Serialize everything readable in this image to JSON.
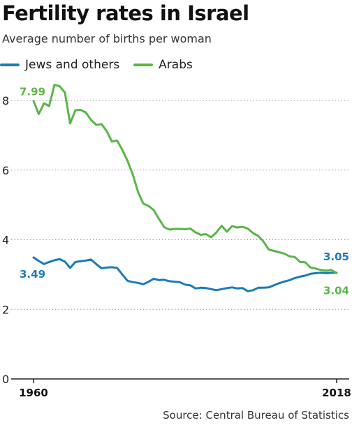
{
  "chart_data": {
    "type": "line",
    "title": "Fertility rates in Israel",
    "subtitle": "Average number of births per woman",
    "source": "Source: Central Bureau of Statistics",
    "ylim": [
      0,
      8.5
    ],
    "yticks": [
      0,
      2,
      4,
      6,
      8
    ],
    "xlim": [
      1960,
      2018
    ],
    "xtick_labels": [
      "1960",
      "2018"
    ],
    "grid": "horizontal dotted",
    "legend_position": "top-left",
    "x": [
      1960,
      1961,
      1962,
      1963,
      1964,
      1965,
      1966,
      1967,
      1968,
      1969,
      1970,
      1971,
      1972,
      1973,
      1974,
      1975,
      1976,
      1977,
      1978,
      1979,
      1980,
      1981,
      1982,
      1983,
      1984,
      1985,
      1986,
      1987,
      1988,
      1989,
      1990,
      1991,
      1992,
      1993,
      1994,
      1995,
      1996,
      1997,
      1998,
      1999,
      2000,
      2001,
      2002,
      2003,
      2004,
      2005,
      2006,
      2007,
      2008,
      2009,
      2010,
      2011,
      2012,
      2013,
      2014,
      2015,
      2016,
      2017,
      2018
    ],
    "series": [
      {
        "name": "Jews and others",
        "color": "#1a7bb8",
        "values": [
          3.49,
          3.39,
          3.3,
          3.36,
          3.41,
          3.44,
          3.37,
          3.19,
          3.36,
          3.38,
          3.4,
          3.43,
          3.3,
          3.18,
          3.2,
          3.21,
          3.19,
          3.0,
          2.82,
          2.78,
          2.76,
          2.72,
          2.79,
          2.88,
          2.84,
          2.85,
          2.81,
          2.79,
          2.78,
          2.71,
          2.69,
          2.6,
          2.62,
          2.61,
          2.58,
          2.55,
          2.58,
          2.61,
          2.63,
          2.6,
          2.61,
          2.52,
          2.55,
          2.62,
          2.62,
          2.63,
          2.69,
          2.75,
          2.8,
          2.84,
          2.9,
          2.94,
          2.97,
          3.02,
          3.04,
          3.05,
          3.04,
          3.05,
          3.05
        ],
        "first_label": "3.49",
        "last_label": "3.05"
      },
      {
        "name": "Arabs",
        "color": "#5ab548",
        "values": [
          7.99,
          7.61,
          7.92,
          7.84,
          8.45,
          8.41,
          8.23,
          7.34,
          7.72,
          7.73,
          7.66,
          7.44,
          7.3,
          7.32,
          7.12,
          6.82,
          6.85,
          6.58,
          6.26,
          5.87,
          5.37,
          5.04,
          4.97,
          4.85,
          4.6,
          4.36,
          4.29,
          4.31,
          4.31,
          4.3,
          4.32,
          4.21,
          4.14,
          4.16,
          4.07,
          4.21,
          4.4,
          4.23,
          4.39,
          4.35,
          4.37,
          4.32,
          4.19,
          4.11,
          3.95,
          3.72,
          3.68,
          3.64,
          3.6,
          3.52,
          3.5,
          3.36,
          3.35,
          3.2,
          3.17,
          3.13,
          3.11,
          3.13,
          3.04
        ],
        "first_label": "7.99",
        "last_label": "3.04"
      }
    ]
  }
}
